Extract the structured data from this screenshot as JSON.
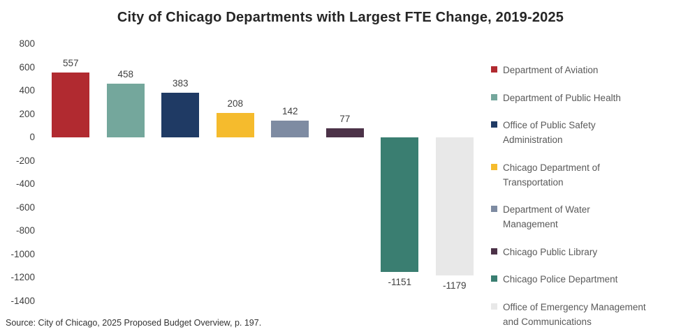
{
  "chart_title": "City of Chicago Departments with Largest FTE Change, 2019-2025",
  "source_note": "Source: City of Chicago, 2025 Proposed Budget Overview, p. 197.",
  "chart_data": {
    "type": "bar",
    "title": "City of Chicago Departments with Largest FTE Change, 2019-2025",
    "categories": [
      "Department of Aviation",
      "Department of Public Health",
      "Office of Public Safety Administration",
      "Chicago Department of Transportation",
      "Department of Water Management",
      "Chicago Public Library",
      "Chicago Police Department",
      "Office of Emergency Management and Communications"
    ],
    "values": [
      557,
      458,
      383,
      208,
      142,
      77,
      -1151,
      -1179
    ],
    "data_labels": [
      "557",
      "458",
      "383",
      "208",
      "142",
      "77",
      "-1151",
      "-1179"
    ],
    "colors": [
      "#B12A30",
      "#74A79C",
      "#1F3A64",
      "#F5BB2D",
      "#7E8BA2",
      "#4C3248",
      "#3A7E71",
      "#E8E8E8"
    ],
    "legend_labels": [
      "Department of Aviation",
      "Department of Public Health",
      "Office of Public Safety\nAdministration",
      "Chicago Department of\nTransportation",
      "Department of Water\nManagement",
      "Chicago Public Library",
      "Chicago Police Department",
      "Office of Emergency Management\nand Communications"
    ],
    "yticks": [
      800,
      600,
      400,
      200,
      0,
      -200,
      -400,
      -600,
      -800,
      -1000,
      -1200,
      -1400
    ],
    "ylim": [
      -1400,
      800
    ],
    "xlabel": "",
    "ylabel": "",
    "grid": false,
    "legend_position": "right"
  }
}
